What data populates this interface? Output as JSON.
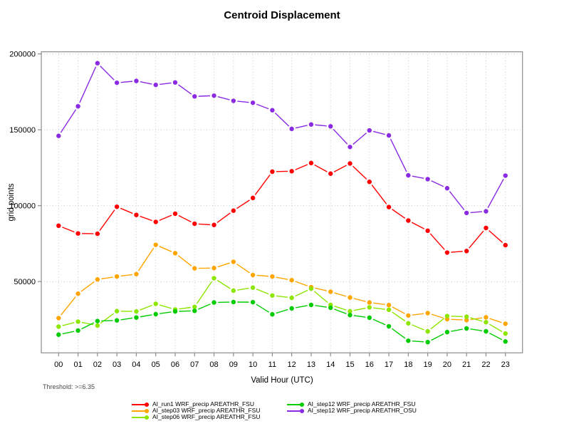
{
  "header": {
    "title": "Centroid Displacement"
  },
  "footer": {
    "threshold": "Threshold: >=6.35"
  },
  "chart_data": {
    "type": "line",
    "title": "Centroid Displacement",
    "xlabel": "Valid Hour (UTC)",
    "ylabel": "grid points",
    "x_tick_labels": [
      "00",
      "01",
      "02",
      "03",
      "04",
      "05",
      "06",
      "07",
      "08",
      "09",
      "10",
      "11",
      "12",
      "13",
      "14",
      "15",
      "16",
      "17",
      "18",
      "19",
      "20",
      "21",
      "22",
      "23"
    ],
    "y_ticks": [
      50000,
      100000,
      150000,
      200000
    ],
    "y_tick_labels": [
      "50000",
      "100000",
      "150000",
      "200000"
    ],
    "ylim": [
      3000,
      201500
    ],
    "grid": true,
    "legend_position": "bottom",
    "marker": "circle",
    "series": [
      {
        "name": "AI_run1 WRF_precip AREATHR_FSU",
        "color": "#ff0000",
        "values": [
          86800,
          81700,
          81500,
          99300,
          93900,
          89300,
          94700,
          88100,
          87300,
          96700,
          105100,
          122400,
          122700,
          128100,
          121100,
          127800,
          115700,
          99100,
          90200,
          83500,
          69100,
          70100,
          85300,
          74000
        ]
      },
      {
        "name": "AI_step03 WRF_precip AREATHR_FSU",
        "color": "#ffa500",
        "values": [
          25900,
          42000,
          51400,
          53300,
          54900,
          74200,
          68700,
          58700,
          58900,
          63000,
          54300,
          53300,
          50900,
          46300,
          43300,
          39500,
          36200,
          34500,
          27600,
          29200,
          25200,
          24600,
          26400,
          22200
        ]
      },
      {
        "name": "AI_step06 WRF_precip AREATHR_FSU",
        "color": "#8de600",
        "values": [
          20300,
          23600,
          21000,
          30500,
          30300,
          35300,
          31600,
          33300,
          52200,
          44000,
          46000,
          40800,
          39300,
          45300,
          34600,
          30400,
          33000,
          31400,
          22500,
          17200,
          27300,
          26800,
          23200,
          15700
        ]
      },
      {
        "name": "AI_step12 WRF_precip AREATHR_FSU",
        "color": "#00cc00",
        "values": [
          15000,
          17700,
          24000,
          24400,
          26300,
          28500,
          30300,
          30700,
          36200,
          36500,
          36400,
          28400,
          32300,
          34600,
          32700,
          27900,
          26200,
          20500,
          11000,
          10100,
          16700,
          19100,
          17200,
          10500
        ]
      },
      {
        "name": "AI_step12 WRF_precip AREATHR_OSU",
        "color": "#8a2be2",
        "values": [
          146000,
          165500,
          193900,
          181000,
          182200,
          179600,
          181200,
          172000,
          172500,
          169100,
          167800,
          162900,
          150600,
          153500,
          152300,
          138700,
          149600,
          146300,
          120000,
          117500,
          111500,
          95200,
          96300,
          119800
        ]
      }
    ]
  },
  "legend": {
    "columns": [
      {
        "x": 185,
        "series": [
          0,
          1,
          2
        ]
      },
      {
        "x": 403,
        "series": [
          3,
          4
        ]
      }
    ]
  }
}
